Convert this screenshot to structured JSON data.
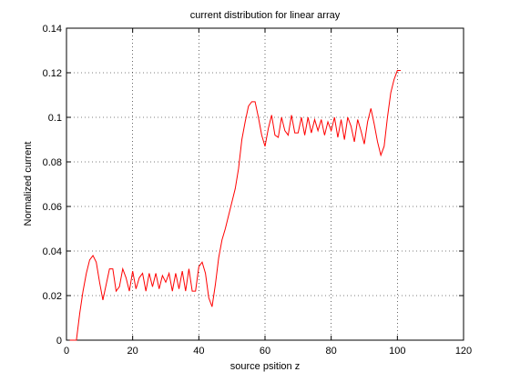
{
  "chart_data": {
    "type": "line",
    "title": "current distribution for linear array",
    "xlabel": "source psition z",
    "ylabel": "Normalized current",
    "x": [
      1,
      2,
      3,
      4,
      5,
      6,
      7,
      8,
      9,
      10,
      11,
      12,
      13,
      14,
      15,
      16,
      17,
      18,
      19,
      20,
      21,
      22,
      23,
      24,
      25,
      26,
      27,
      28,
      29,
      30,
      31,
      32,
      33,
      34,
      35,
      36,
      37,
      38,
      39,
      40,
      41,
      42,
      43,
      44,
      45,
      46,
      47,
      48,
      49,
      50,
      51,
      52,
      53,
      54,
      55,
      56,
      57,
      58,
      59,
      60,
      61,
      62,
      63,
      64,
      65,
      66,
      67,
      68,
      69,
      70,
      71,
      72,
      73,
      74,
      75,
      76,
      77,
      78,
      79,
      80,
      81,
      82,
      83,
      84,
      85,
      86,
      87,
      88,
      89,
      90,
      91,
      92,
      93,
      94,
      95,
      96,
      97,
      98,
      99,
      100,
      101
    ],
    "series": [
      {
        "color": "#ff0000",
        "values": [
          0,
          0,
          0,
          0.012,
          0.022,
          0.03,
          0.036,
          0.038,
          0.035,
          0.026,
          0.018,
          0.025,
          0.032,
          0.032,
          0.022,
          0.024,
          0.032,
          0.028,
          0.022,
          0.031,
          0.023,
          0.028,
          0.03,
          0.022,
          0.03,
          0.024,
          0.03,
          0.023,
          0.029,
          0.026,
          0.03,
          0.022,
          0.03,
          0.023,
          0.031,
          0.022,
          0.032,
          0.022,
          0.022,
          0.033,
          0.035,
          0.03,
          0.019,
          0.015,
          0.025,
          0.037,
          0.045,
          0.05,
          0.056,
          0.062,
          0.068,
          0.077,
          0.09,
          0.098,
          0.105,
          0.107,
          0.107,
          0.1,
          0.092,
          0.087,
          0.095,
          0.101,
          0.092,
          0.091,
          0.1,
          0.094,
          0.092,
          0.101,
          0.093,
          0.093,
          0.1,
          0.092,
          0.1,
          0.093,
          0.099,
          0.094,
          0.099,
          0.092,
          0.098,
          0.094,
          0.1,
          0.091,
          0.099,
          0.09,
          0.1,
          0.096,
          0.089,
          0.099,
          0.094,
          0.088,
          0.098,
          0.104,
          0.097,
          0.089,
          0.083,
          0.087,
          0.1,
          0.111,
          0.117,
          0.121,
          0.121
        ]
      }
    ],
    "xlim": [
      0,
      120
    ],
    "xticks": [
      0,
      20,
      40,
      60,
      80,
      100,
      120
    ],
    "ylim": [
      0,
      0.14
    ],
    "yticks": [
      0,
      0.02,
      0.04,
      0.06,
      0.08,
      0.1,
      0.12,
      0.14
    ],
    "grid": true
  }
}
